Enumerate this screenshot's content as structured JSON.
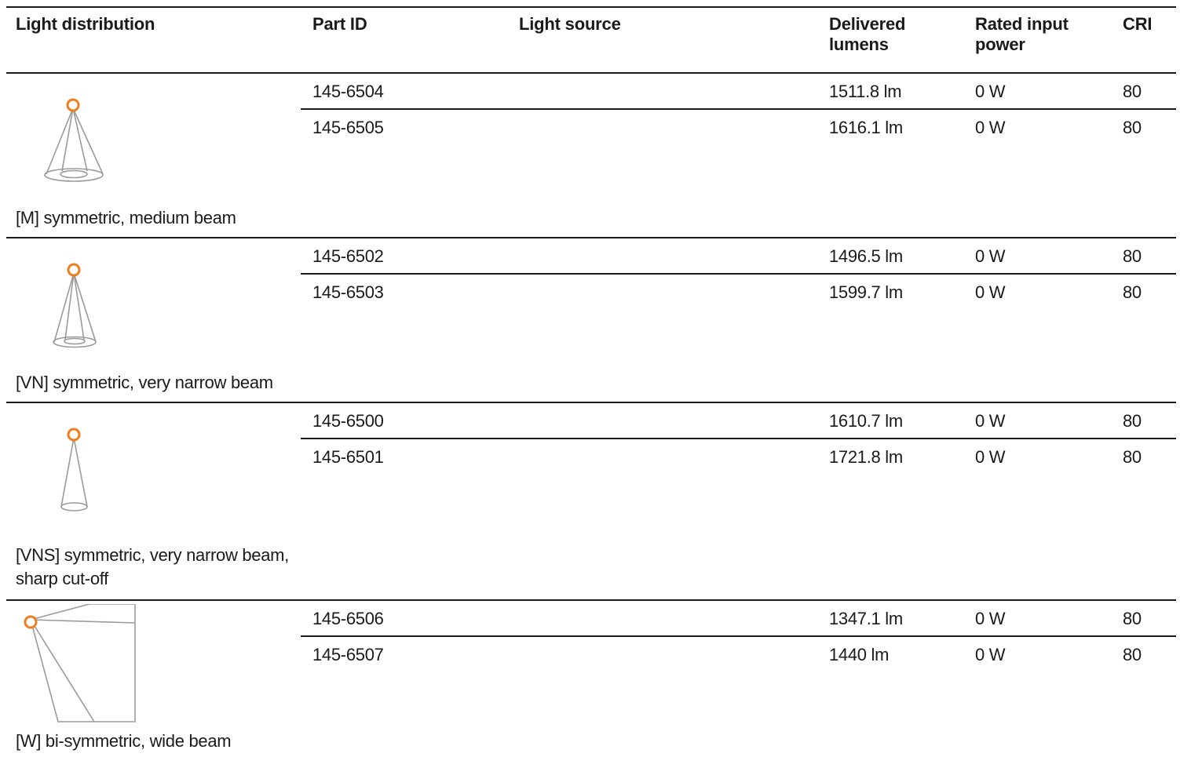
{
  "header": {
    "light_distribution": "Light distribution",
    "part_id": "Part ID",
    "light_source": "Light source",
    "delivered_lumens": "Delivered lumens",
    "rated_input_power": "Rated input power",
    "cri": "CRI"
  },
  "groups": [
    {
      "label": "[M] symmetric, medium beam",
      "icon": "medium-beam-cone-icon",
      "rows": [
        {
          "part_id": "145-6504",
          "light_source": "",
          "lumens": "1511.8 lm",
          "power": "0 W",
          "cri": "80"
        },
        {
          "part_id": "145-6505",
          "light_source": "",
          "lumens": "1616.1 lm",
          "power": "0 W",
          "cri": "80"
        }
      ]
    },
    {
      "label": "[VN] symmetric, very narrow beam",
      "icon": "very-narrow-beam-cone-icon",
      "rows": [
        {
          "part_id": "145-6502",
          "light_source": "",
          "lumens": "1496.5 lm",
          "power": "0 W",
          "cri": "80"
        },
        {
          "part_id": "145-6503",
          "light_source": "",
          "lumens": "1599.7 lm",
          "power": "0 W",
          "cri": "80"
        }
      ]
    },
    {
      "label": "[VNS] symmetric, very narrow beam, sharp cut-off",
      "icon": "very-narrow-sharp-cutoff-cone-icon",
      "rows": [
        {
          "part_id": "145-6500",
          "light_source": "",
          "lumens": "1610.7 lm",
          "power": "0 W",
          "cri": "80"
        },
        {
          "part_id": "145-6501",
          "light_source": "",
          "lumens": "1721.8 lm",
          "power": "0 W",
          "cri": "80"
        }
      ]
    },
    {
      "label": "[W] bi-symmetric, wide beam",
      "icon": "wide-beam-wallwash-icon",
      "rows": [
        {
          "part_id": "145-6506",
          "light_source": "",
          "lumens": "1347.1 lm",
          "power": "0 W",
          "cri": "80"
        },
        {
          "part_id": "145-6507",
          "light_source": "",
          "lumens": "1440 lm",
          "power": "0 W",
          "cri": "80"
        }
      ]
    }
  ],
  "colors": {
    "accent_orange": "#f07d1a",
    "icon_gray": "#9a9a9a",
    "rule": "#1a1a1a"
  }
}
